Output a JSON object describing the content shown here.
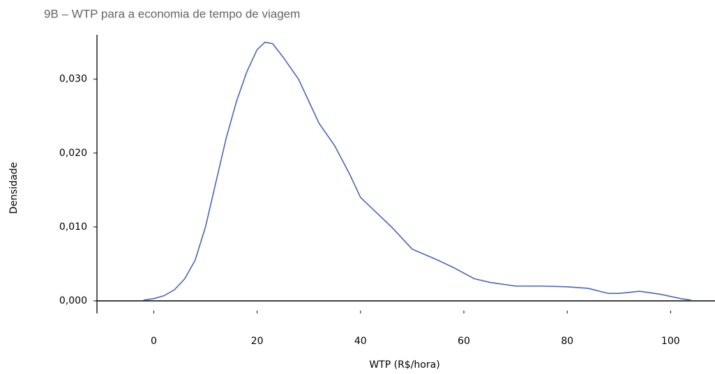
{
  "chart_data": {
    "type": "line",
    "title": "9B – WTP para a economia de tempo de viagem",
    "x_label": "WTP (R$/hora)",
    "y_label": "Densidade",
    "x": [
      -2,
      0,
      2,
      4,
      6,
      8,
      10,
      12,
      14,
      16,
      18,
      20,
      21.5,
      23,
      25,
      28,
      30,
      32,
      35,
      38,
      40,
      43,
      46,
      50,
      55,
      58,
      62,
      65,
      70,
      75,
      80,
      84,
      88,
      90,
      94,
      98,
      102,
      104
    ],
    "series": [
      {
        "color": "#4a66b5",
        "values": [
          0.0001,
          0.0003,
          0.0007,
          0.0015,
          0.003,
          0.0055,
          0.01,
          0.016,
          0.022,
          0.027,
          0.031,
          0.034,
          0.035,
          0.0348,
          0.033,
          0.03,
          0.027,
          0.024,
          0.021,
          0.017,
          0.014,
          0.012,
          0.01,
          0.007,
          0.0055,
          0.0045,
          0.003,
          0.0025,
          0.002,
          0.002,
          0.0019,
          0.0017,
          0.001,
          0.001,
          0.0013,
          0.0009,
          0.0003,
          0.0001
        ]
      }
    ],
    "xlim": [
      -11,
      108.6
    ],
    "ylim": [
      -0.0017,
      0.036
    ],
    "xticks": [
      0,
      20,
      40,
      60,
      80,
      100
    ],
    "yticks": [
      {
        "value": 0,
        "label": "0,000"
      },
      {
        "value": 0.01,
        "label": "0,010"
      },
      {
        "value": 0.02,
        "label": "0,020"
      },
      {
        "value": 0.03,
        "label": "0,030"
      }
    ]
  }
}
